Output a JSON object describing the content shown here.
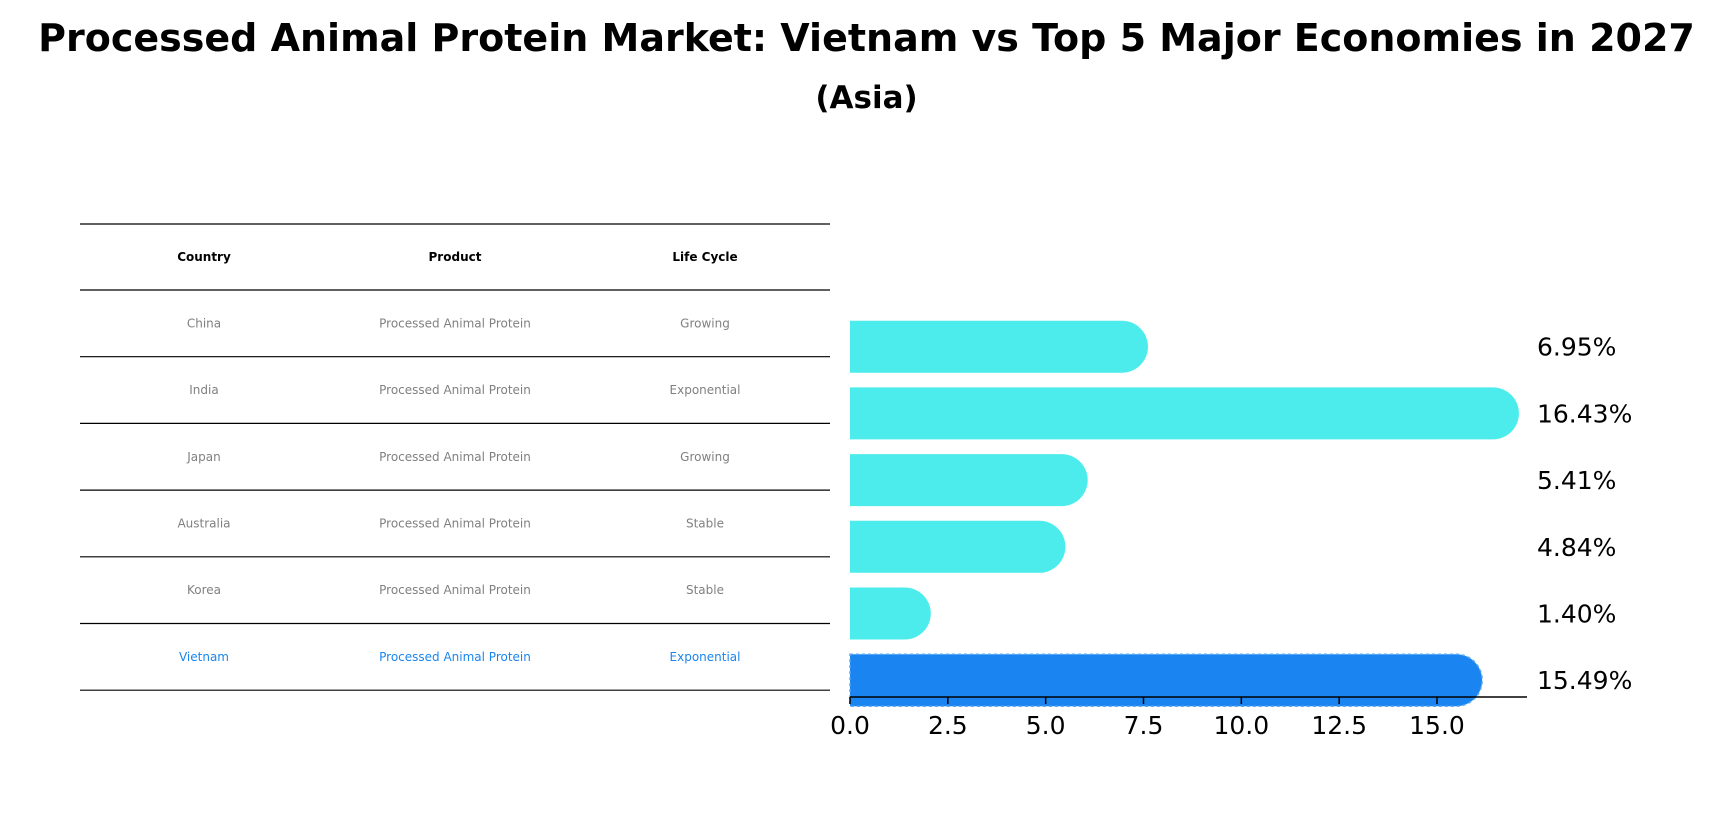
{
  "title": "Processed Animal Protein Market: Vietnam vs Top 5 Major Economies in 2027",
  "subtitle": "(Asia)",
  "table": {
    "headers": [
      "Country",
      "Product",
      "Life Cycle"
    ],
    "rows": [
      {
        "country": "China",
        "product": "Processed Animal Protein",
        "life_cycle": "Growing",
        "highlight": false
      },
      {
        "country": "India",
        "product": "Processed Animal Protein",
        "life_cycle": "Exponential",
        "highlight": false
      },
      {
        "country": "Japan",
        "product": "Processed Animal Protein",
        "life_cycle": "Growing",
        "highlight": false
      },
      {
        "country": "Australia",
        "product": "Processed Animal Protein",
        "life_cycle": "Stable",
        "highlight": false
      },
      {
        "country": "Korea",
        "product": "Processed Animal Protein",
        "life_cycle": "Stable",
        "highlight": false
      },
      {
        "country": "Vietnam",
        "product": "Processed Animal Protein",
        "life_cycle": "Exponential",
        "highlight": true
      }
    ]
  },
  "colors": {
    "bar": "#4cecec",
    "highlight": "#1a85f0",
    "text_muted": "#808080"
  },
  "chart_data": {
    "type": "bar",
    "orientation": "horizontal",
    "categories": [
      "China",
      "India",
      "Japan",
      "Australia",
      "Korea",
      "Vietnam"
    ],
    "values": [
      6.95,
      16.43,
      5.41,
      4.84,
      1.4,
      15.49
    ],
    "value_labels": [
      "6.95%",
      "16.43%",
      "5.41%",
      "4.84%",
      "1.40%",
      "15.49%"
    ],
    "highlight_category": "Vietnam",
    "xlim": [
      0,
      17.3
    ],
    "xticks": [
      0.0,
      2.5,
      5.0,
      7.5,
      10.0,
      12.5,
      15.0
    ],
    "xtick_labels": [
      "0.0",
      "2.5",
      "5.0",
      "7.5",
      "10.0",
      "12.5",
      "15.0"
    ],
    "grid": false
  }
}
